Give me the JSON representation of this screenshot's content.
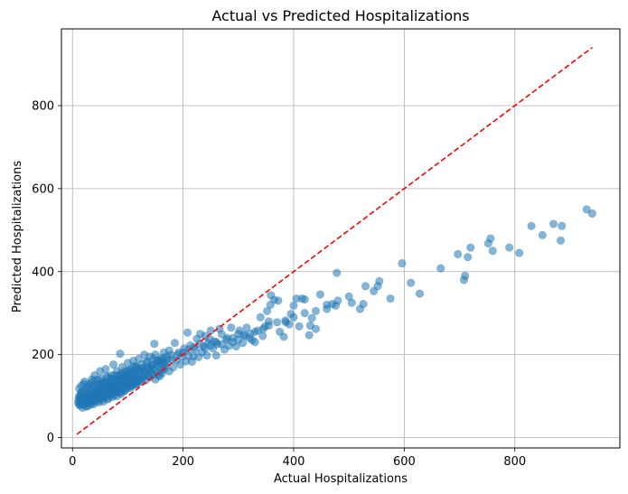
{
  "chart_data": {
    "type": "scatter",
    "title": "Actual vs Predicted Hospitalizations",
    "xlabel": "Actual Hospitalizations",
    "ylabel": "Predicted Hospitalizations",
    "xlim": [
      -20,
      990
    ],
    "ylim": [
      -25,
      985
    ],
    "xticks": [
      0,
      200,
      400,
      600,
      800
    ],
    "yticks": [
      0,
      200,
      400,
      600,
      800
    ],
    "grid": true,
    "point_color": "#1f77b4",
    "point_alpha": 0.55,
    "reference_line": {
      "x": [
        8,
        940
      ],
      "y": [
        8,
        940
      ],
      "color": "#ff0000",
      "style": "dashed"
    },
    "points": [
      [
        940,
        540
      ],
      [
        930,
        550
      ],
      [
        885,
        510
      ],
      [
        883,
        475
      ],
      [
        870,
        515
      ],
      [
        850,
        488
      ],
      [
        830,
        510
      ],
      [
        808,
        445
      ],
      [
        790,
        458
      ],
      [
        760,
        450
      ],
      [
        756,
        480
      ],
      [
        752,
        468
      ],
      [
        720,
        458
      ],
      [
        715,
        435
      ],
      [
        710,
        390
      ],
      [
        708,
        380
      ],
      [
        697,
        442
      ],
      [
        666,
        408
      ],
      [
        628,
        347
      ],
      [
        612,
        373
      ],
      [
        596,
        420
      ],
      [
        575,
        335
      ],
      [
        555,
        377
      ],
      [
        552,
        365
      ],
      [
        545,
        353
      ],
      [
        530,
        365
      ],
      [
        526,
        322
      ],
      [
        520,
        310
      ],
      [
        505,
        325
      ],
      [
        478,
        397
      ],
      [
        476,
        318
      ],
      [
        470,
        322
      ],
      [
        460,
        310
      ],
      [
        448,
        345
      ],
      [
        440,
        262
      ],
      [
        433,
        288
      ],
      [
        430,
        270
      ],
      [
        428,
        247
      ],
      [
        420,
        333
      ],
      [
        415,
        335
      ],
      [
        410,
        268
      ],
      [
        405,
        335
      ],
      [
        400,
        318
      ],
      [
        395,
        298
      ],
      [
        392,
        273
      ],
      [
        386,
        278
      ],
      [
        382,
        243
      ],
      [
        375,
        255
      ],
      [
        372,
        330
      ],
      [
        365,
        332
      ],
      [
        359,
        343
      ],
      [
        358,
        320
      ],
      [
        355,
        280
      ],
      [
        352,
        305
      ],
      [
        348,
        268
      ],
      [
        344,
        245
      ],
      [
        340,
        290
      ],
      [
        335,
        258
      ],
      [
        330,
        230
      ],
      [
        325,
        235
      ],
      [
        322,
        250
      ],
      [
        315,
        265
      ],
      [
        312,
        245
      ],
      [
        308,
        228
      ],
      [
        302,
        258
      ],
      [
        300,
        236
      ],
      [
        296,
        220
      ],
      [
        290,
        240
      ],
      [
        287,
        265
      ],
      [
        283,
        221
      ],
      [
        278,
        236
      ],
      [
        275,
        212
      ],
      [
        270,
        249
      ],
      [
        266,
        262
      ],
      [
        262,
        225
      ],
      [
        260,
        198
      ],
      [
        257,
        232
      ],
      [
        254,
        215
      ],
      [
        250,
        258
      ],
      [
        248,
        238
      ],
      [
        245,
        228
      ],
      [
        243,
        198
      ],
      [
        240,
        245
      ],
      [
        237,
        220
      ],
      [
        234,
        206
      ],
      [
        231,
        250
      ],
      [
        228,
        194
      ],
      [
        225,
        238
      ],
      [
        222,
        212
      ],
      [
        219,
        196
      ],
      [
        216,
        183
      ],
      [
        213,
        222
      ],
      [
        210,
        197
      ],
      [
        208,
        253
      ],
      [
        205,
        184
      ],
      [
        202,
        215
      ],
      [
        198,
        195
      ],
      [
        195,
        176
      ],
      [
        192,
        205
      ],
      [
        188,
        186
      ],
      [
        185,
        228
      ],
      [
        182,
        169
      ],
      [
        178,
        199
      ],
      [
        175,
        160
      ],
      [
        172,
        188
      ],
      [
        168,
        172
      ],
      [
        165,
        205
      ],
      [
        162,
        163
      ],
      [
        158,
        186
      ],
      [
        155,
        150
      ],
      [
        152,
        175
      ],
      [
        148,
        226
      ],
      [
        146,
        190
      ],
      [
        143,
        156
      ],
      [
        140,
        168
      ],
      [
        137,
        148
      ],
      [
        134,
        183
      ],
      [
        130,
        152
      ],
      [
        127,
        166
      ],
      [
        124,
        140
      ],
      [
        121,
        160
      ],
      [
        118,
        134
      ],
      [
        115,
        170
      ],
      [
        112,
        146
      ],
      [
        110,
        129
      ],
      [
        107,
        152
      ],
      [
        104,
        124
      ],
      [
        101,
        140
      ],
      [
        98,
        118
      ],
      [
        96,
        131
      ],
      [
        94,
        112
      ],
      [
        92,
        145
      ],
      [
        90,
        125
      ],
      [
        88,
        105
      ],
      [
        86,
        202
      ],
      [
        84,
        136
      ],
      [
        82,
        119
      ],
      [
        80,
        100
      ],
      [
        78,
        128
      ],
      [
        76,
        112
      ],
      [
        74,
        176
      ],
      [
        72,
        98
      ],
      [
        70,
        135
      ],
      [
        68,
        115
      ],
      [
        66,
        104
      ],
      [
        64,
        92
      ],
      [
        62,
        148
      ],
      [
        60,
        120
      ],
      [
        58,
        101
      ],
      [
        56,
        87
      ],
      [
        54,
        130
      ],
      [
        52,
        110
      ],
      [
        50,
        96
      ],
      [
        48,
        85
      ],
      [
        46,
        140
      ],
      [
        44,
        118
      ],
      [
        42,
        102
      ],
      [
        40,
        91
      ],
      [
        38,
        80
      ],
      [
        36,
        126
      ],
      [
        34,
        108
      ],
      [
        32,
        95
      ],
      [
        30,
        84
      ],
      [
        28,
        76
      ],
      [
        26,
        120
      ],
      [
        24,
        103
      ],
      [
        22,
        90
      ],
      [
        20,
        81
      ],
      [
        18,
        72
      ],
      [
        16,
        110
      ],
      [
        15,
        95
      ],
      [
        14,
        86
      ],
      [
        13,
        78
      ],
      [
        12,
        100
      ],
      [
        20,
        130
      ],
      [
        25,
        112
      ],
      [
        30,
        128
      ],
      [
        35,
        140
      ],
      [
        40,
        150
      ],
      [
        45,
        125
      ],
      [
        50,
        160
      ],
      [
        55,
        135
      ],
      [
        60,
        165
      ],
      [
        65,
        128
      ],
      [
        70,
        150
      ],
      [
        75,
        140
      ],
      [
        80,
        160
      ],
      [
        85,
        150
      ],
      [
        90,
        170
      ],
      [
        95,
        160
      ],
      [
        100,
        180
      ],
      [
        105,
        165
      ],
      [
        110,
        185
      ],
      [
        115,
        172
      ],
      [
        120,
        190
      ],
      [
        125,
        176
      ],
      [
        130,
        200
      ],
      [
        135,
        182
      ],
      [
        140,
        195
      ],
      [
        145,
        175
      ],
      [
        150,
        200
      ],
      [
        155,
        185
      ],
      [
        160,
        190
      ],
      [
        165,
        180
      ],
      [
        170,
        195
      ],
      [
        175,
        210
      ],
      [
        180,
        188
      ],
      [
        190,
        200
      ],
      [
        200,
        205
      ],
      [
        210,
        212
      ],
      [
        220,
        218
      ],
      [
        230,
        226
      ],
      [
        240,
        215
      ],
      [
        250,
        222
      ],
      [
        260,
        230
      ],
      [
        270,
        225
      ],
      [
        280,
        240
      ],
      [
        290,
        230
      ],
      [
        300,
        250
      ],
      [
        310,
        248
      ],
      [
        320,
        240
      ],
      [
        330,
        255
      ],
      [
        345,
        262
      ],
      [
        355,
        270
      ],
      [
        370,
        278
      ],
      [
        385,
        282
      ],
      [
        400,
        290
      ],
      [
        420,
        300
      ],
      [
        440,
        305
      ],
      [
        460,
        320
      ],
      [
        480,
        330
      ],
      [
        500,
        340
      ],
      [
        20,
        90
      ],
      [
        22,
        100
      ],
      [
        24,
        85
      ],
      [
        26,
        95
      ],
      [
        28,
        105
      ],
      [
        30,
        92
      ],
      [
        32,
        102
      ],
      [
        34,
        88
      ],
      [
        36,
        98
      ],
      [
        38,
        110
      ],
      [
        40,
        95
      ],
      [
        42,
        108
      ],
      [
        44,
        92
      ],
      [
        46,
        104
      ],
      [
        48,
        115
      ],
      [
        50,
        100
      ],
      [
        52,
        112
      ],
      [
        54,
        98
      ],
      [
        56,
        108
      ],
      [
        58,
        120
      ],
      [
        60,
        105
      ],
      [
        62,
        115
      ],
      [
        64,
        125
      ],
      [
        66,
        110
      ],
      [
        68,
        120
      ],
      [
        70,
        108
      ],
      [
        72,
        118
      ],
      [
        74,
        130
      ],
      [
        76,
        115
      ],
      [
        78,
        125
      ],
      [
        80,
        112
      ],
      [
        82,
        135
      ],
      [
        84,
        122
      ],
      [
        86,
        110
      ],
      [
        88,
        128
      ],
      [
        90,
        140
      ],
      [
        92,
        118
      ],
      [
        94,
        130
      ],
      [
        96,
        145
      ],
      [
        98,
        125
      ],
      [
        100,
        138
      ],
      [
        102,
        150
      ],
      [
        104,
        132
      ],
      [
        106,
        145
      ],
      [
        108,
        125
      ],
      [
        110,
        158
      ],
      [
        112,
        136
      ],
      [
        114,
        148
      ],
      [
        116,
        130
      ],
      [
        118,
        160
      ],
      [
        120,
        142
      ],
      [
        122,
        155
      ],
      [
        124,
        135
      ],
      [
        126,
        168
      ],
      [
        128,
        146
      ],
      [
        130,
        158
      ],
      [
        132,
        138
      ],
      [
        134,
        165
      ],
      [
        136,
        150
      ],
      [
        138,
        170
      ],
      [
        140,
        145
      ],
      [
        142,
        160
      ],
      [
        144,
        175
      ],
      [
        146,
        152
      ],
      [
        148,
        165
      ],
      [
        150,
        140
      ],
      [
        152,
        185
      ],
      [
        154,
        158
      ],
      [
        156,
        170
      ],
      [
        158,
        148
      ],
      [
        160,
        178
      ],
      [
        162,
        155
      ],
      [
        164,
        190
      ],
      [
        166,
        165
      ],
      [
        168,
        180
      ],
      [
        10,
        85
      ],
      [
        11,
        92
      ],
      [
        12,
        80
      ],
      [
        13,
        98
      ],
      [
        14,
        88
      ],
      [
        15,
        105
      ],
      [
        16,
        82
      ],
      [
        17,
        95
      ],
      [
        18,
        110
      ],
      [
        19,
        90
      ],
      [
        21,
        78
      ],
      [
        23,
        86
      ],
      [
        25,
        75
      ],
      [
        27,
        99
      ],
      [
        29,
        88
      ],
      [
        31,
        115
      ],
      [
        33,
        80
      ],
      [
        35,
        93
      ],
      [
        37,
        104
      ],
      [
        39,
        86
      ],
      [
        41,
        122
      ],
      [
        43,
        97
      ],
      [
        45,
        88
      ],
      [
        47,
        108
      ],
      [
        49,
        93
      ],
      [
        51,
        125
      ],
      [
        53,
        103
      ],
      [
        55,
        92
      ],
      [
        57,
        116
      ],
      [
        59,
        98
      ],
      [
        61,
        135
      ],
      [
        63,
        110
      ],
      [
        65,
        96
      ],
      [
        67,
        123
      ],
      [
        69,
        104
      ],
      [
        71,
        142
      ],
      [
        73,
        117
      ],
      [
        75,
        102
      ],
      [
        77,
        130
      ],
      [
        79,
        110
      ],
      [
        81,
        148
      ],
      [
        83,
        124
      ],
      [
        85,
        108
      ],
      [
        87,
        140
      ],
      [
        89,
        118
      ],
      [
        91,
        155
      ],
      [
        93,
        132
      ],
      [
        95,
        115
      ],
      [
        97,
        150
      ],
      [
        99,
        126
      ],
      [
        101,
        162
      ],
      [
        103,
        138
      ],
      [
        105,
        120
      ],
      [
        107,
        158
      ],
      [
        109,
        134
      ],
      [
        111,
        172
      ],
      [
        113,
        145
      ],
      [
        115,
        128
      ],
      [
        117,
        165
      ],
      [
        119,
        140
      ],
      [
        12,
        118
      ],
      [
        16,
        125
      ],
      [
        22,
        135
      ],
      [
        28,
        122
      ],
      [
        34,
        132
      ],
      [
        40,
        138
      ],
      [
        46,
        130
      ],
      [
        52,
        142
      ],
      [
        58,
        132
      ],
      [
        64,
        145
      ],
      [
        70,
        138
      ],
      [
        76,
        150
      ],
      [
        82,
        142
      ],
      [
        88,
        155
      ],
      [
        94,
        148
      ],
      [
        100,
        160
      ]
    ]
  }
}
